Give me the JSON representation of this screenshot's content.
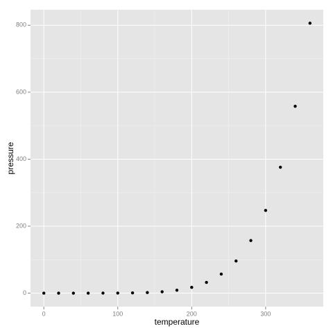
{
  "chart_data": {
    "type": "scatter",
    "x_label": "temperature",
    "y_label": "pressure",
    "x": [
      0,
      20,
      40,
      60,
      80,
      100,
      120,
      140,
      160,
      180,
      200,
      220,
      240,
      260,
      280,
      300,
      320,
      340,
      360
    ],
    "series": [
      {
        "color": "#000000",
        "values": [
          0.0002,
          0.0012,
          0.006,
          0.03,
          0.09,
          0.27,
          0.75,
          1.85,
          4.2,
          8.8,
          17.3,
          32.1,
          57,
          96,
          157,
          247,
          376,
          558,
          806
        ]
      }
    ],
    "xlim": [
      -18,
      378
    ],
    "ylim": [
      -40.3,
      846.3
    ],
    "xticks": [
      0,
      100,
      200,
      300
    ],
    "yticks": [
      0,
      200,
      400,
      600,
      800
    ],
    "grid": true
  }
}
